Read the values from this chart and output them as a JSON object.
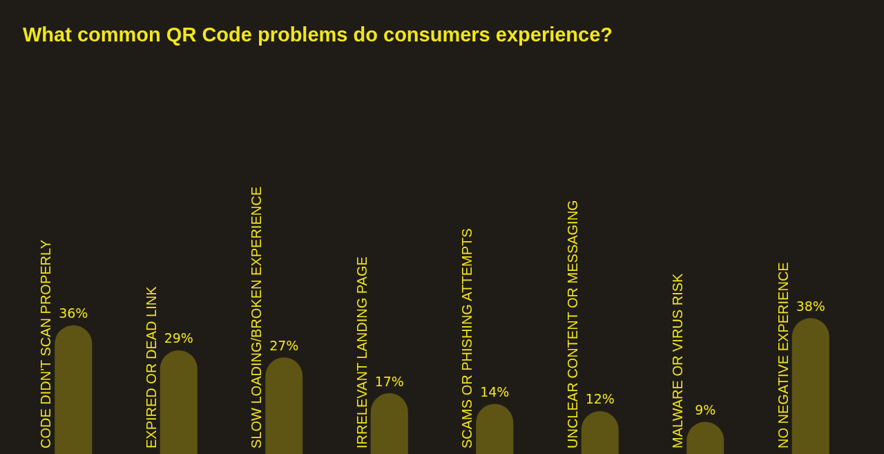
{
  "chart_data": {
    "type": "bar",
    "title": "What common QR Code problems do consumers experience?",
    "categories": [
      "CODE DIDN'T SCAN PROPERLY",
      "EXPIRED OR DEAD LINK",
      "SLOW LOADING/BROKEN EXPERIENCE",
      "IRRELEVANT LANDING PAGE",
      "SCAMS OR PHISHING ATTEMPTS",
      "UNCLEAR CONTENT OR MESSAGING",
      "MALWARE OR VIRUS RISK",
      "NO NEGATIVE EXPERIENCE"
    ],
    "values": [
      36,
      29,
      27,
      17,
      14,
      12,
      9,
      38
    ],
    "value_labels": [
      "36%",
      "29%",
      "27%",
      "17%",
      "14%",
      "12%",
      "9%",
      "38%"
    ],
    "color": "#5e5514",
    "tick_labels": "x",
    "grid": false
  }
}
